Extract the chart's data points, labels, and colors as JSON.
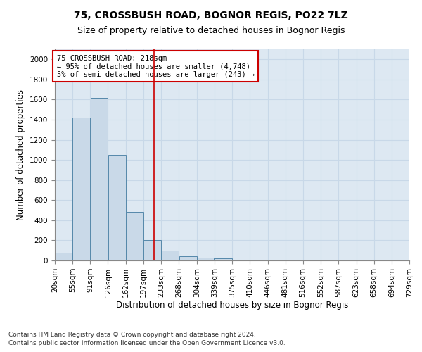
{
  "title": "75, CROSSBUSH ROAD, BOGNOR REGIS, PO22 7LZ",
  "subtitle": "Size of property relative to detached houses in Bognor Regis",
  "xlabel": "Distribution of detached houses by size in Bognor Regis",
  "ylabel": "Number of detached properties",
  "footnote1": "Contains HM Land Registry data © Crown copyright and database right 2024.",
  "footnote2": "Contains public sector information licensed under the Open Government Licence v3.0.",
  "annotation_line1": "75 CROSSBUSH ROAD: 218sqm",
  "annotation_line2": "← 95% of detached houses are smaller (4,748)",
  "annotation_line3": "5% of semi-detached houses are larger (243) →",
  "bar_left_edges": [
    20,
    55,
    91,
    126,
    162,
    197,
    233,
    268,
    304,
    339,
    375,
    410,
    446,
    481,
    516,
    552,
    587,
    623,
    658,
    694
  ],
  "bar_widths": [
    35,
    36,
    35,
    36,
    35,
    36,
    35,
    36,
    35,
    36,
    35,
    36,
    35,
    36,
    35,
    35,
    36,
    35,
    36,
    35
  ],
  "bar_heights": [
    75,
    1420,
    1620,
    1050,
    480,
    200,
    100,
    40,
    30,
    20,
    0,
    0,
    0,
    0,
    0,
    0,
    0,
    0,
    0,
    0
  ],
  "bar_facecolor": "#c9d9e8",
  "bar_edgecolor": "#5588aa",
  "vline_x": 218,
  "vline_color": "#cc0000",
  "ylim": [
    0,
    2100
  ],
  "xlim": [
    20,
    729
  ],
  "yticks": [
    0,
    200,
    400,
    600,
    800,
    1000,
    1200,
    1400,
    1600,
    1800,
    2000
  ],
  "xtick_labels": [
    "20sqm",
    "55sqm",
    "91sqm",
    "126sqm",
    "162sqm",
    "197sqm",
    "233sqm",
    "268sqm",
    "304sqm",
    "339sqm",
    "375sqm",
    "410sqm",
    "446sqm",
    "481sqm",
    "516sqm",
    "552sqm",
    "587sqm",
    "623sqm",
    "658sqm",
    "694sqm",
    "729sqm"
  ],
  "xtick_positions": [
    20,
    55,
    91,
    126,
    162,
    197,
    233,
    268,
    304,
    339,
    375,
    410,
    446,
    481,
    516,
    552,
    587,
    623,
    658,
    694,
    729
  ],
  "grid_color": "#c8d8e8",
  "plot_bg_color": "#dde8f2",
  "title_fontsize": 10,
  "subtitle_fontsize": 9,
  "axis_label_fontsize": 8.5,
  "tick_fontsize": 7.5,
  "annotation_fontsize": 7.5,
  "footnote_fontsize": 6.5
}
